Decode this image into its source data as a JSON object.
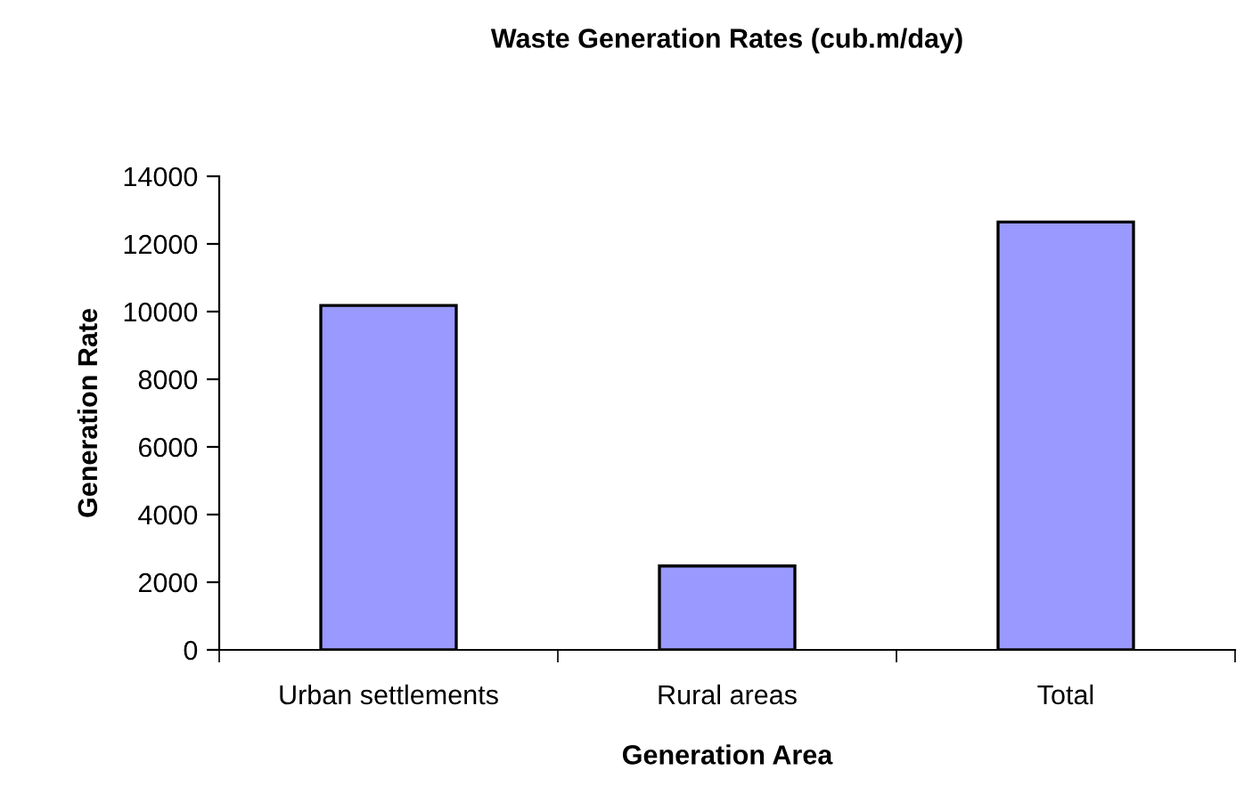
{
  "chart_data": {
    "type": "bar",
    "title": "Waste Generation Rates (cub.m/day)",
    "xlabel": "Generation Area",
    "ylabel": "Generation Rate",
    "categories": [
      "Urban settlements",
      "Rural areas",
      "Total"
    ],
    "values": [
      10180,
      2480,
      12650
    ],
    "color": "#9999ff",
    "ylim": [
      0,
      14000
    ],
    "yticks": [
      0,
      2000,
      4000,
      6000,
      8000,
      10000,
      12000,
      14000
    ],
    "grid": false
  }
}
